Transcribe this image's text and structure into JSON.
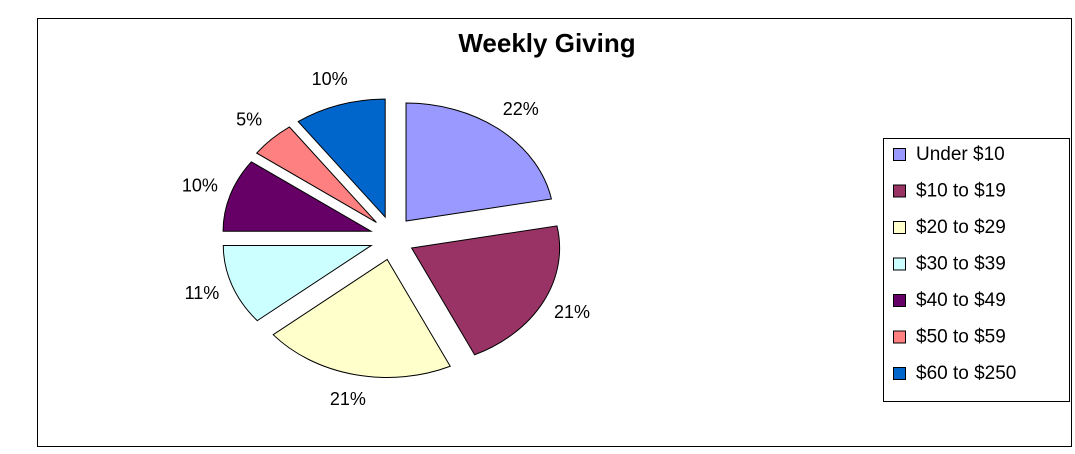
{
  "chart_data": {
    "type": "pie",
    "title": "Weekly Giving",
    "categories": [
      "Under $10",
      "$10 to $19",
      "$20 to $29",
      "$30 to $39",
      "$40 to $49",
      "$50 to $59",
      "$60 to $250"
    ],
    "values": [
      22,
      21,
      21,
      11,
      10,
      5,
      10
    ],
    "value_labels": [
      "22%",
      "21%",
      "21%",
      "11%",
      "10%",
      "5%",
      "10%"
    ],
    "colors": [
      "#9999ff",
      "#993366",
      "#ffffcc",
      "#ccffff",
      "#660066",
      "#ff8080",
      "#0066cc"
    ],
    "exploded": true,
    "legend": "right"
  }
}
